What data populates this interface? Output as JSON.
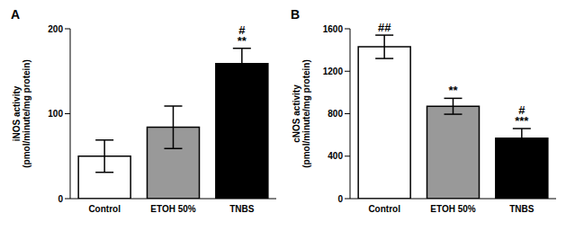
{
  "chart_data": [
    {
      "type": "bar",
      "title": "A",
      "ylabel": [
        "iNOS activity",
        "(pmol/minute/mg protein)"
      ],
      "categories": [
        "Control",
        "ETOH 50%",
        "TNBS"
      ],
      "values": [
        50,
        84,
        159
      ],
      "errors": [
        19,
        25,
        18
      ],
      "colors": [
        "#ffffff",
        "#999999",
        "#000000"
      ],
      "ylim": [
        0,
        200
      ],
      "yticks": [
        0,
        100,
        200
      ],
      "annotations": [
        {
          "category": "TNBS",
          "lines": [
            "#",
            "**"
          ]
        }
      ]
    },
    {
      "type": "bar",
      "title": "B",
      "ylabel": [
        "cNOS activity",
        "(pmol/minute/mg protein)"
      ],
      "categories": [
        "Control",
        "ETOH 50%",
        "TNBS"
      ],
      "values": [
        1430,
        870,
        570
      ],
      "errors": [
        110,
        75,
        90
      ],
      "colors": [
        "#ffffff",
        "#999999",
        "#000000"
      ],
      "ylim": [
        0,
        1600
      ],
      "yticks": [
        0,
        400,
        800,
        1200,
        1600
      ],
      "annotations": [
        {
          "category": "Control",
          "lines": [
            "##"
          ]
        },
        {
          "category": "ETOH 50%",
          "lines": [
            "**"
          ]
        },
        {
          "category": "TNBS",
          "lines": [
            "#",
            "***"
          ]
        }
      ]
    }
  ]
}
